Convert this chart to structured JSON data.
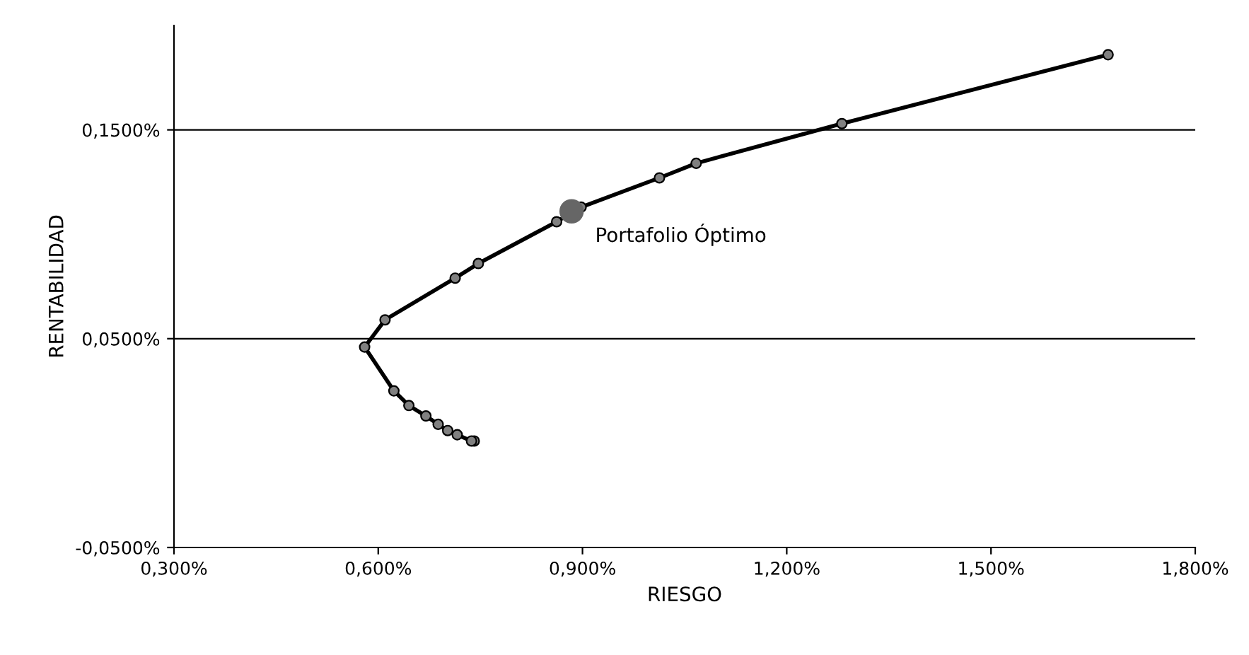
{
  "chart_data": {
    "type": "line",
    "xlabel": "RIESGO",
    "ylabel": "RENTABILIDAD",
    "series": [
      {
        "color": "#000000",
        "marker": "circle",
        "x": [
          0.741,
          0.737,
          0.716,
          0.702,
          0.688,
          0.67,
          0.645,
          0.623,
          0.58,
          0.61,
          0.713,
          0.747,
          0.862,
          0.898,
          1.013,
          1.067,
          1.281,
          1.672
        ],
        "values": [
          0.001,
          0.001,
          0.004,
          0.006,
          0.009,
          0.013,
          0.018,
          0.025,
          0.046,
          0.059,
          0.079,
          0.086,
          0.106,
          0.113,
          0.127,
          0.134,
          0.153,
          0.186
        ]
      },
      {
        "type": "scatter",
        "color": "#666666",
        "marker": "circle",
        "x": [
          0.884
        ],
        "values": [
          0.111
        ]
      }
    ],
    "annotations": [
      {
        "text": "Portafolio Óptimo",
        "x": 0.884,
        "y": 0.111
      }
    ],
    "xlim": [
      0.3,
      1.8
    ],
    "xticks": [
      {
        "value": 0.3,
        "label": "0,300%"
      },
      {
        "value": 0.6,
        "label": "0,600%"
      },
      {
        "value": 0.9,
        "label": "0,900%"
      },
      {
        "value": 1.2,
        "label": "1,200%"
      },
      {
        "value": 1.5,
        "label": "1,500%"
      },
      {
        "value": 1.8,
        "label": "1,800%"
      }
    ],
    "ylim": [
      -0.05,
      0.2
    ],
    "yticks": [
      {
        "value": -0.05,
        "label": "-0,0500%"
      },
      {
        "value": 0.05,
        "label": "0,0500%"
      },
      {
        "value": 0.15,
        "label": "0,1500%"
      }
    ],
    "grid": "y",
    "legend": false
  }
}
